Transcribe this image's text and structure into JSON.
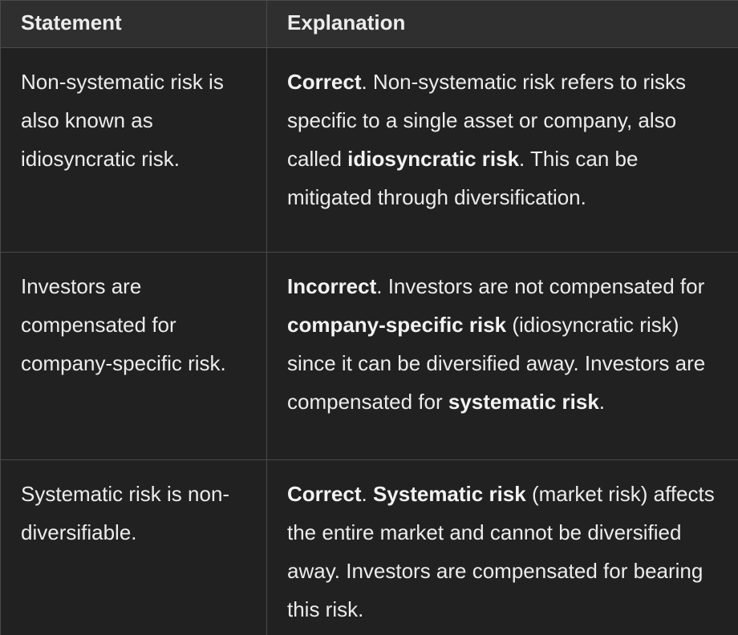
{
  "table": {
    "headers": [
      "Statement",
      "Explanation"
    ],
    "rows": [
      {
        "statement": "Non-systematic risk is also known as idiosyncratic risk.",
        "verdict": "Correct",
        "parts": [
          ". Non-systematic risk refers to risks specific to a single asset or company, also called ",
          "idiosyncratic risk",
          ". This can be mitigated through diversification."
        ]
      },
      {
        "statement": "Investors are compensated for company-specific risk.",
        "verdict": "Incorrect",
        "parts": [
          ". Investors are not compensated for ",
          "company-specific risk",
          " (idiosyncratic risk) since it can be diversified away. Investors are compensated for ",
          "systematic risk",
          "."
        ]
      },
      {
        "statement": "Systematic risk is non-diversifiable.",
        "verdict": "Correct",
        "parts": [
          ". ",
          "Systematic risk",
          " (market risk) affects the entire market and cannot be diversified away. Investors are compensated for bearing this risk."
        ]
      }
    ]
  }
}
